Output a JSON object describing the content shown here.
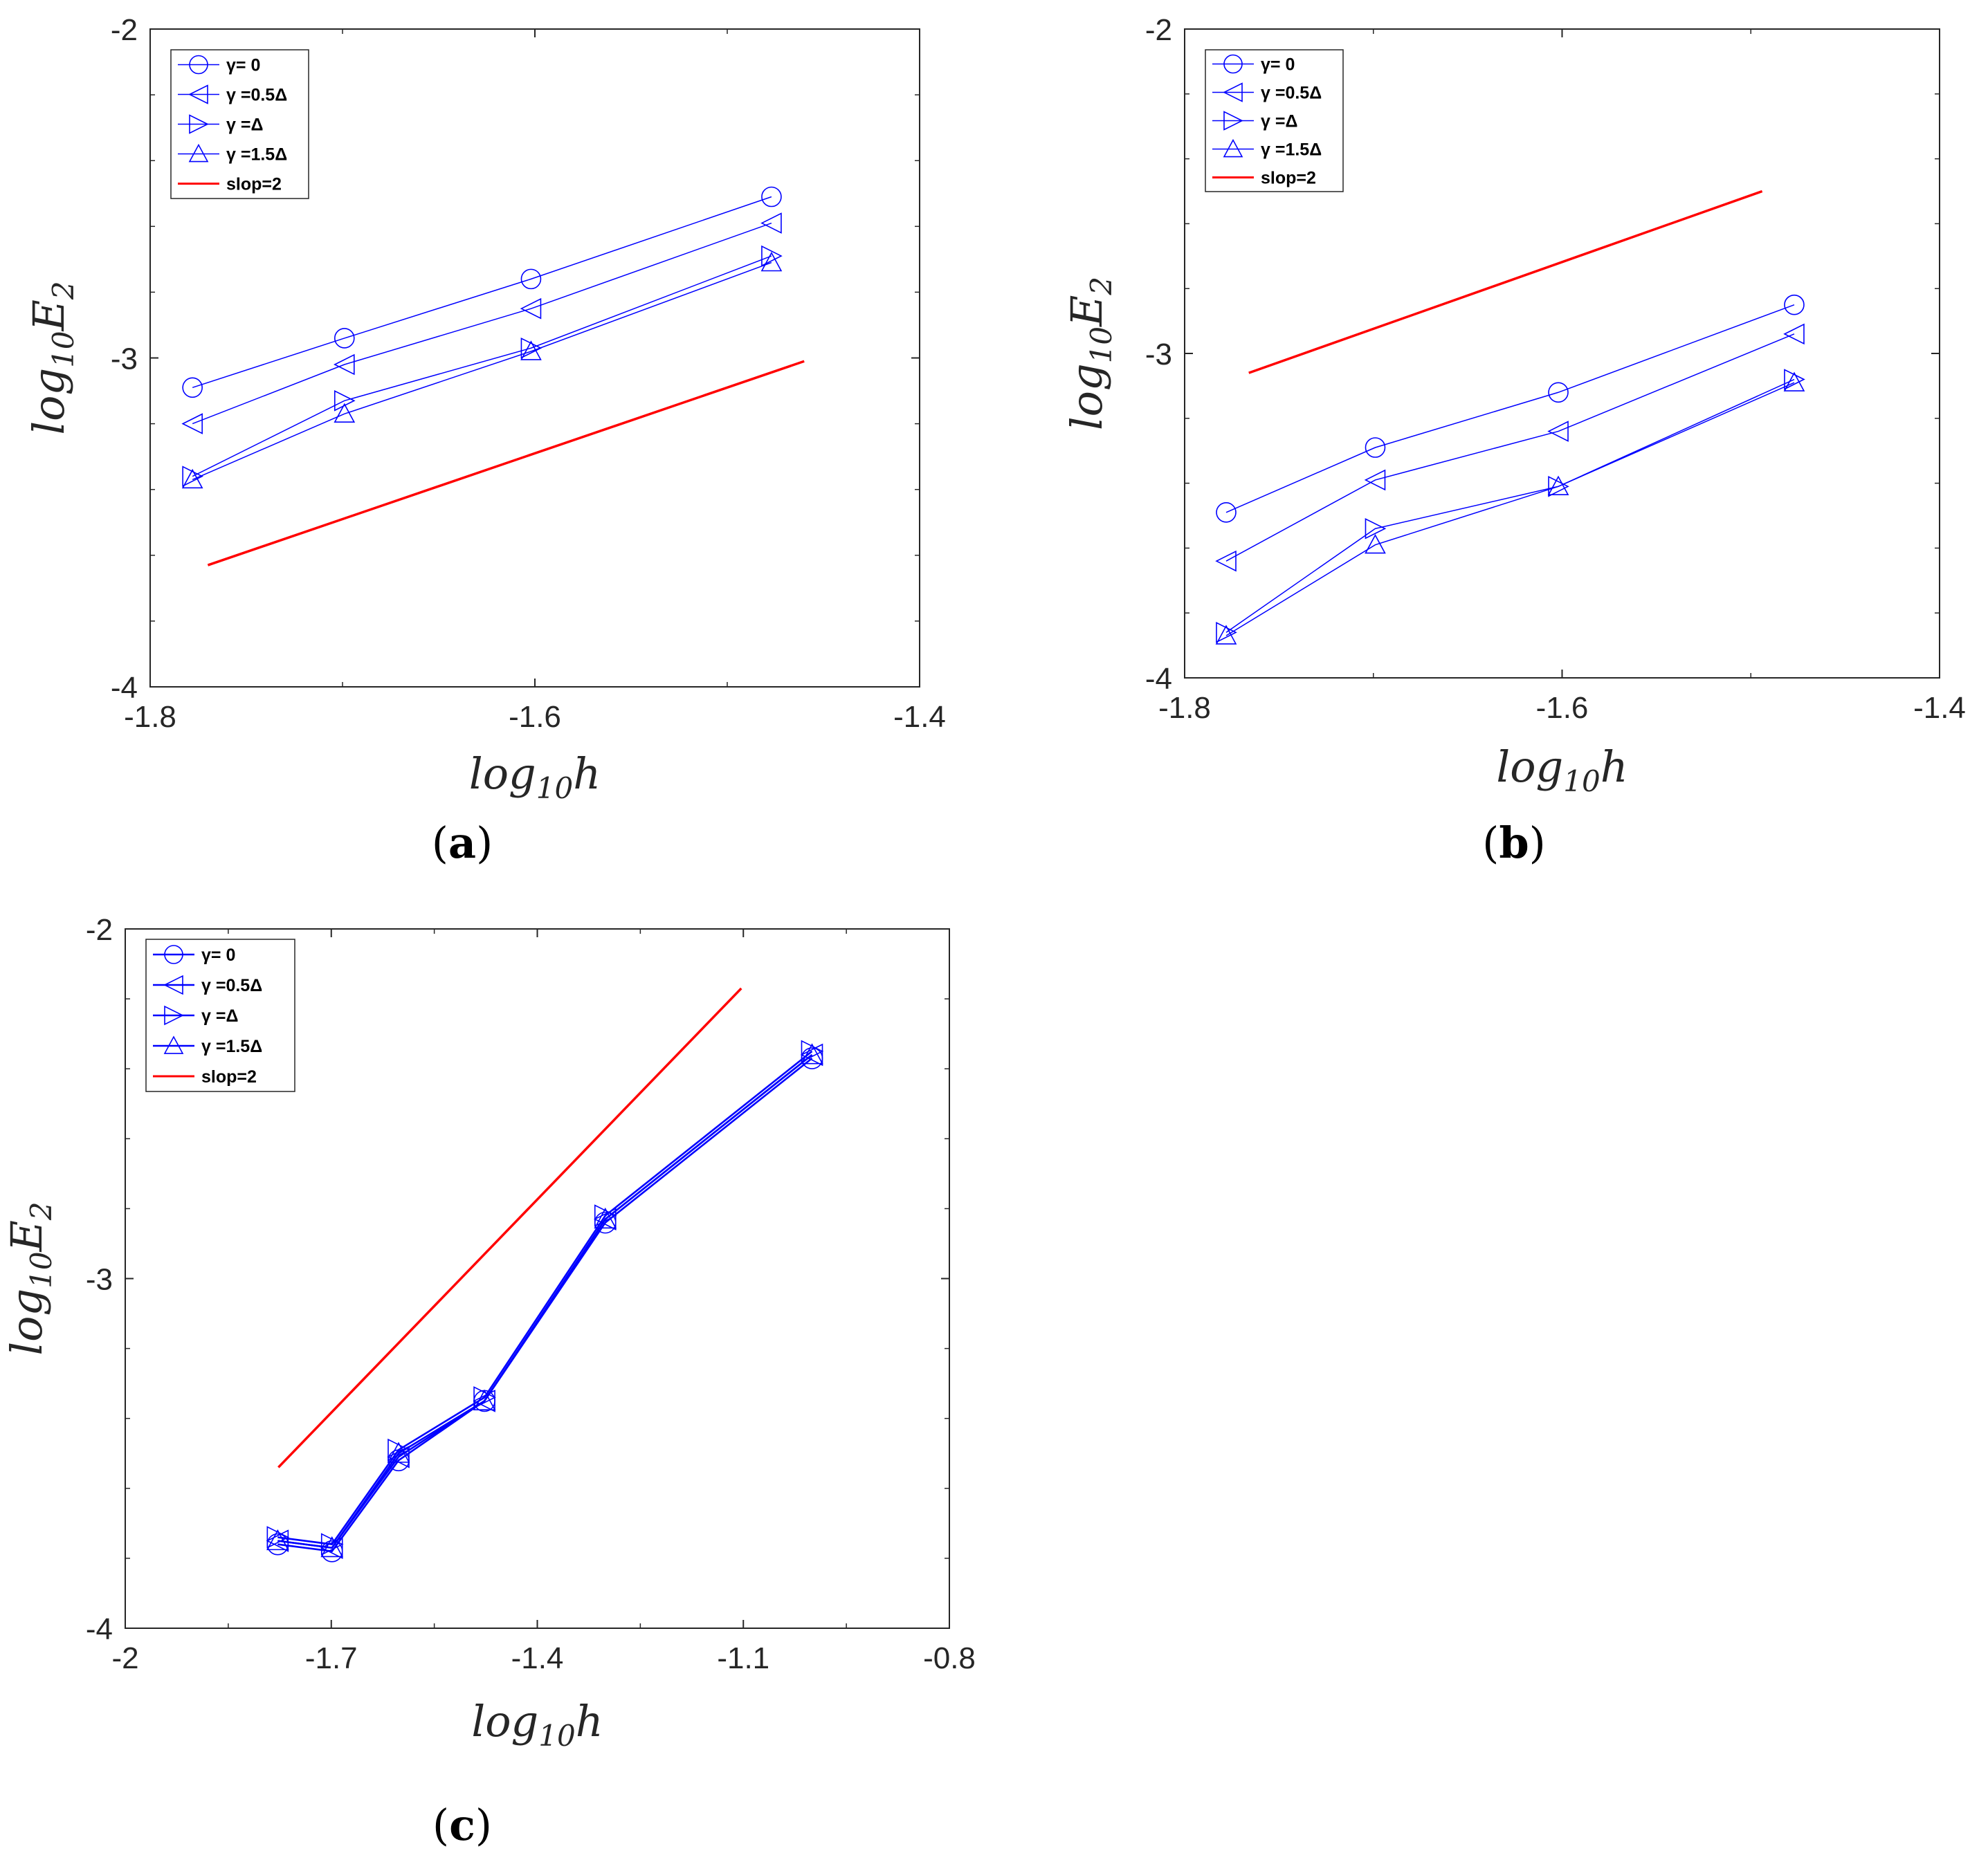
{
  "colors": {
    "series": "#0000ff",
    "reference": "#ff0000",
    "axis": "#262626"
  },
  "chart_data": [
    {
      "id": "a",
      "type": "line",
      "panel_label": "a",
      "xlabel": "log10h",
      "ylabel": "log10E2",
      "xlim": [
        -1.8,
        -1.4
      ],
      "ylim": [
        -4,
        -2
      ],
      "xticks": [
        -1.8,
        -1.6,
        -1.4
      ],
      "xtick_labels": [
        "-1.8",
        "-1.6",
        "-1.4"
      ],
      "yticks": [
        -4,
        -3,
        -2
      ],
      "ytick_labels": [
        "-4",
        "-3",
        "-2"
      ],
      "minor_yticks": [
        -3.8,
        -3.6,
        -3.4,
        -3.2,
        -2.8,
        -2.6,
        -2.4,
        -2.2
      ],
      "minor_xticks": [
        -1.7,
        -1.5
      ],
      "legend_placement": "top-left",
      "series": [
        {
          "name": "γ= 0",
          "label_prefix": "= 0",
          "marker": "circle",
          "x": [
            -1.778,
            -1.699,
            -1.602,
            -1.477
          ],
          "y": [
            -3.09,
            -2.94,
            -2.76,
            -2.51
          ]
        },
        {
          "name": "γ =0.5Δ",
          "label_prefix": " =0.5Δ",
          "marker": "triangle-left",
          "x": [
            -1.778,
            -1.699,
            -1.602,
            -1.477
          ],
          "y": [
            -3.2,
            -3.02,
            -2.85,
            -2.59
          ]
        },
        {
          "name": "γ =Δ",
          "label_prefix": " =Δ",
          "marker": "triangle-right",
          "x": [
            -1.778,
            -1.699,
            -1.602,
            -1.477
          ],
          "y": [
            -3.36,
            -3.13,
            -2.97,
            -2.69
          ]
        },
        {
          "name": "γ =1.5Δ",
          "label_prefix": " =1.5Δ",
          "marker": "triangle-up",
          "x": [
            -1.778,
            -1.699,
            -1.602,
            -1.477
          ],
          "y": [
            -3.37,
            -3.17,
            -2.98,
            -2.71
          ]
        }
      ],
      "reference": {
        "name": "slop=2",
        "x": [
          -1.77,
          -1.46
        ],
        "y": [
          -3.63,
          -3.01
        ]
      }
    },
    {
      "id": "b",
      "type": "line",
      "panel_label": "b",
      "xlabel": "log10h",
      "ylabel": "log10E2",
      "xlim": [
        -1.8,
        -1.4
      ],
      "ylim": [
        -4,
        -2
      ],
      "xticks": [
        -1.8,
        -1.6,
        -1.4
      ],
      "xtick_labels": [
        "-1.8",
        "-1.6",
        "-1.4"
      ],
      "yticks": [
        -4,
        -3,
        -2
      ],
      "ytick_labels": [
        "-4",
        "-3",
        "-2"
      ],
      "minor_yticks": [
        -3.8,
        -3.6,
        -3.4,
        -3.2,
        -2.8,
        -2.6,
        -2.4,
        -2.2
      ],
      "minor_xticks": [
        -1.7,
        -1.5
      ],
      "legend_placement": "top-left",
      "series": [
        {
          "name": "γ= 0",
          "label_prefix": "= 0",
          "marker": "circle",
          "x": [
            -1.778,
            -1.699,
            -1.602,
            -1.477
          ],
          "y": [
            -3.49,
            -3.29,
            -3.12,
            -2.85
          ]
        },
        {
          "name": "γ =0.5Δ",
          "label_prefix": " =0.5Δ",
          "marker": "triangle-left",
          "x": [
            -1.778,
            -1.699,
            -1.602,
            -1.477
          ],
          "y": [
            -3.64,
            -3.39,
            -3.24,
            -2.94
          ]
        },
        {
          "name": "γ =Δ",
          "label_prefix": " =Δ",
          "marker": "triangle-right",
          "x": [
            -1.778,
            -1.699,
            -1.602,
            -1.477
          ],
          "y": [
            -3.86,
            -3.54,
            -3.41,
            -3.08
          ]
        },
        {
          "name": "γ =1.5Δ",
          "label_prefix": " =1.5Δ",
          "marker": "triangle-up",
          "x": [
            -1.778,
            -1.699,
            -1.602,
            -1.477
          ],
          "y": [
            -3.87,
            -3.59,
            -3.41,
            -3.09
          ]
        }
      ],
      "reference": {
        "name": "slop=2",
        "x": [
          -1.766,
          -1.494
        ],
        "y": [
          -3.06,
          -2.5
        ]
      }
    },
    {
      "id": "c",
      "type": "line",
      "panel_label": "c",
      "xlabel": "log10h",
      "ylabel": "log10E2",
      "xlim": [
        -2,
        -0.8
      ],
      "ylim": [
        -4,
        -2
      ],
      "xticks": [
        -2,
        -1.7,
        -1.4,
        -1.1,
        -0.8
      ],
      "xtick_labels": [
        "-2",
        "-1.7",
        "-1.4",
        "-1.1",
        "-0.8"
      ],
      "yticks": [
        -4,
        -3,
        -2
      ],
      "ytick_labels": [
        "-4",
        "-3",
        "-2"
      ],
      "minor_yticks": [
        -3.8,
        -3.6,
        -3.4,
        -3.2,
        -2.8,
        -2.6,
        -2.4,
        -2.2
      ],
      "minor_xticks": [
        -1.85,
        -1.55,
        -1.25,
        -0.95
      ],
      "legend_placement": "top-left",
      "series": [
        {
          "name": "γ= 0",
          "label_prefix": "= 0",
          "marker": "circle",
          "x": [
            -1.778,
            -1.699,
            -1.602,
            -1.477,
            -1.301,
            -1.0
          ],
          "y": [
            -3.76,
            -3.78,
            -3.52,
            -3.35,
            -2.84,
            -2.37
          ]
        },
        {
          "name": "γ =0.5Δ",
          "label_prefix": " =0.5Δ",
          "marker": "triangle-left",
          "x": [
            -1.778,
            -1.699,
            -1.602,
            -1.477,
            -1.301,
            -1.0
          ],
          "y": [
            -3.75,
            -3.77,
            -3.51,
            -3.35,
            -2.83,
            -2.36
          ]
        },
        {
          "name": "γ =Δ",
          "label_prefix": " =Δ",
          "marker": "triangle-right",
          "x": [
            -1.778,
            -1.699,
            -1.602,
            -1.477,
            -1.301,
            -1.0
          ],
          "y": [
            -3.74,
            -3.76,
            -3.49,
            -3.34,
            -2.82,
            -2.35
          ]
        },
        {
          "name": "γ =1.5Δ",
          "label_prefix": " =1.5Δ",
          "marker": "triangle-up",
          "x": [
            -1.778,
            -1.699,
            -1.602,
            -1.477,
            -1.301,
            -1.0
          ],
          "y": [
            -3.75,
            -3.77,
            -3.5,
            -3.35,
            -2.83,
            -2.36
          ]
        }
      ],
      "reference": {
        "name": "slop=2",
        "x": [
          -1.777,
          -1.103
        ],
        "y": [
          -3.54,
          -2.17
        ]
      }
    }
  ]
}
